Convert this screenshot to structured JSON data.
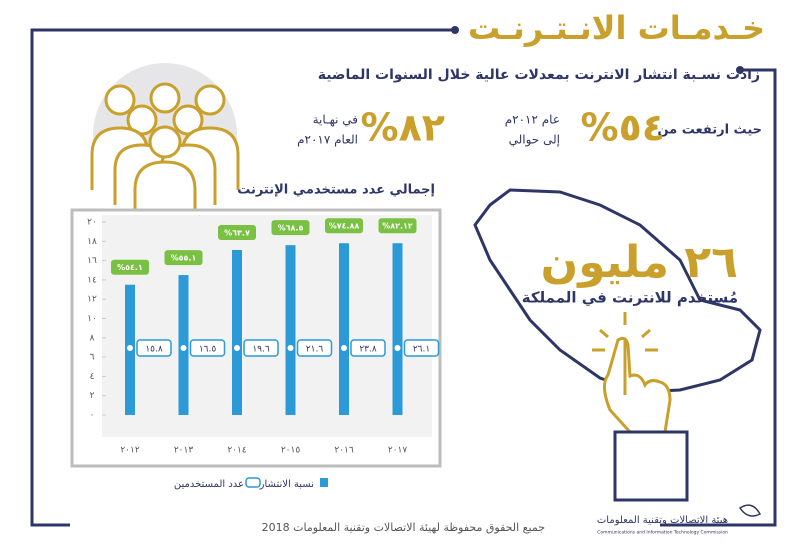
{
  "header": {
    "title": "خـدمـات الانـتـرنـت",
    "subtitle": "زادت نسـبة انتشار الانترنت بمعدلات عالية خلال السنوات الماضية"
  },
  "stats": {
    "rise_label": "حيث ارتفعت من",
    "from_value": "%٥٤",
    "from_year": "عام ٢٠١٢م",
    "to_label": "إلى حوالي",
    "to_value": "%٨٢",
    "to_period": "في نهـاية",
    "to_year": "العام ٢٠١٧م"
  },
  "users": {
    "value": "٢٦ مليون",
    "caption": "مُستخدم للانترنت في المملكة"
  },
  "chart_data": {
    "type": "bar",
    "title": "إجمالي عدد مستخدمي الإنترنت",
    "categories": [
      "٢٠١٢",
      "٢٠١٣",
      "٢٠١٤",
      "٢٠١٥",
      "٢٠١٦",
      "٢٠١٧"
    ],
    "series": [
      {
        "name": "نسبة الانتشار",
        "color": "#2b9ad6",
        "values": [
          13.5,
          14.5,
          17.1,
          17.6,
          17.8,
          17.8
        ]
      },
      {
        "name": "عدد المستخدمين",
        "color": "#2b9ad6",
        "values": [
          15.8,
          16.5,
          19.6,
          21.6,
          23.8,
          26.1
        ],
        "value_labels": [
          "١٥.٨",
          "١٦.٥",
          "١٩.٦",
          "٢١.٦",
          "٢٣.٨",
          "٢٦.١"
        ]
      }
    ],
    "annotations": [
      "%٥٤.١",
      "%٥٥.١",
      "%٦٣.٧",
      "%٦٨.٥",
      "%٧٤.٨٨",
      "%٨٢.١٢"
    ],
    "annotation_color": "#7ac143",
    "ylim": [
      0,
      20
    ],
    "yticks": [
      {
        "value": 0,
        "label": "٠"
      },
      {
        "value": 2,
        "label": "٢"
      },
      {
        "value": 4,
        "label": "٤"
      },
      {
        "value": 6,
        "label": "٦"
      },
      {
        "value": 8,
        "label": "٨"
      },
      {
        "value": 10,
        "label": "١٠"
      },
      {
        "value": 12,
        "label": "١٢"
      },
      {
        "value": 14,
        "label": "١٤"
      },
      {
        "value": 16,
        "label": "١٦"
      },
      {
        "value": 18,
        "label": "١٨"
      },
      {
        "value": 20,
        "label": "٢٠"
      }
    ]
  },
  "footer": {
    "copyright": "جميع الحقوق محفوظة لهيئة الاتصالات وتقنية المعلومات 2018",
    "logo_ar": "هيئة الاتصالات وتقنية المعلومات",
    "logo_en": "Communications and Information Technology Commission"
  }
}
